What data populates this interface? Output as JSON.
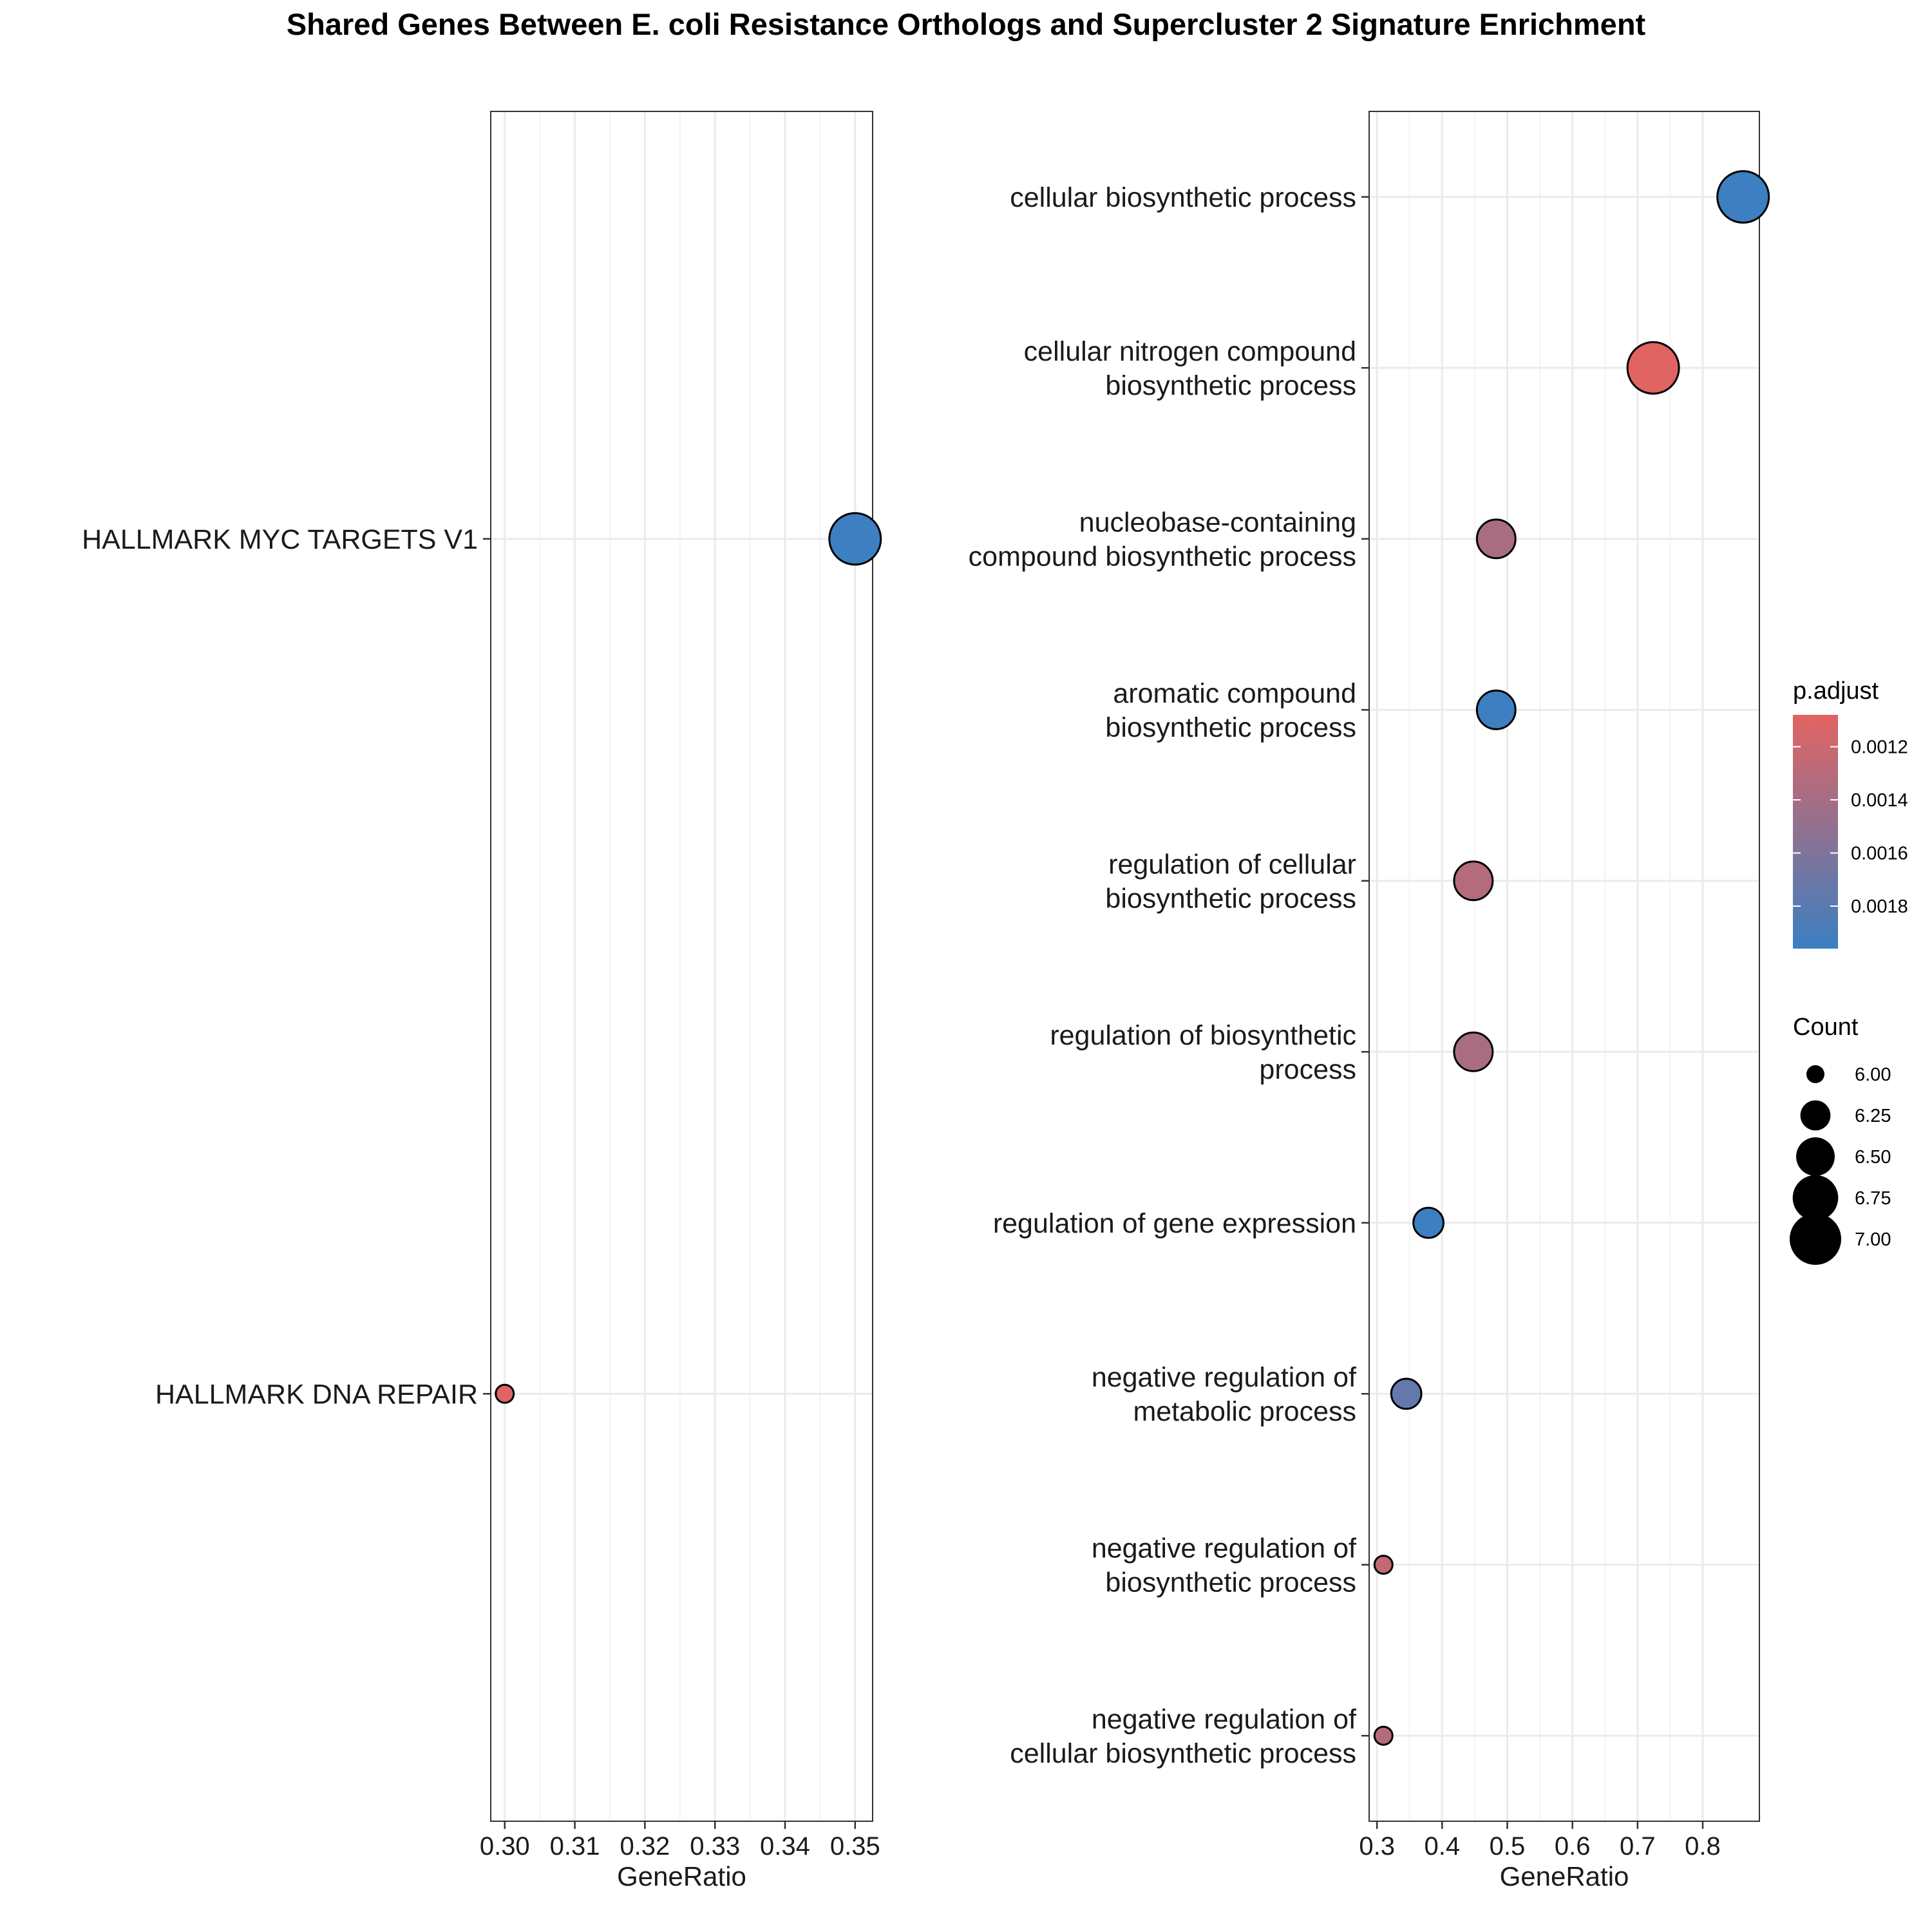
{
  "title": "Shared Genes Between E. coli Resistance Orthologs and Supercluster 2 Signature Enrichment",
  "colors": {
    "high_padj": "#3b7fc2",
    "low_padj": "#e26461",
    "grid_major": "#ebebeb",
    "grid_minor": "#f4f4f4",
    "point_outline": "#000000",
    "panel_border": "#333333"
  },
  "chart_data": [
    {
      "type": "scatter",
      "title": "",
      "xlabel": "GeneRatio",
      "ylabel": "",
      "xlim": [
        0.298,
        0.3525
      ],
      "xticks": [
        0.3,
        0.31,
        0.32,
        0.33,
        0.34,
        0.35
      ],
      "xtick_labels": [
        "0.30",
        "0.31",
        "0.32",
        "0.33",
        "0.34",
        "0.35"
      ],
      "categories": [
        "HALLMARK MYC TARGETS V1",
        "HALLMARK DNA REPAIR"
      ],
      "points": [
        {
          "label": "HALLMARK MYC TARGETS V1",
          "x": 0.35,
          "count": 7,
          "p_adjust": 0.00195
        },
        {
          "label": "HALLMARK DNA REPAIR",
          "x": 0.3,
          "count": 6,
          "p_adjust": 0.00109
        }
      ],
      "grid": true
    },
    {
      "type": "scatter",
      "title": "",
      "xlabel": "GeneRatio",
      "ylabel": "",
      "xlim": [
        0.288,
        0.887
      ],
      "xticks": [
        0.3,
        0.4,
        0.5,
        0.6,
        0.7,
        0.8
      ],
      "xtick_labels": [
        "0.3",
        "0.4",
        "0.5",
        "0.6",
        "0.7",
        "0.8"
      ],
      "categories": [
        "cellular biosynthetic process",
        "cellular nitrogen compound biosynthetic process",
        "nucleobase-containing compound biosynthetic process",
        "aromatic compound biosynthetic process",
        "regulation of cellular biosynthetic process",
        "regulation of biosynthetic process",
        "regulation of gene expression",
        "negative regulation of metabolic process",
        "negative regulation of biosynthetic process",
        "negative regulation of cellular biosynthetic process"
      ],
      "points": [
        {
          "label_lines": [
            "cellular biosynthetic process"
          ],
          "x": 0.862,
          "count": 7,
          "p_adjust": 0.00195
        },
        {
          "label_lines": [
            "cellular nitrogen compound",
            "biosynthetic process"
          ],
          "x": 0.724,
          "count": 7,
          "p_adjust": 0.00109
        },
        {
          "label_lines": [
            "nucleobase-containing",
            "compound biosynthetic process"
          ],
          "x": 0.483,
          "count": 6.5,
          "p_adjust": 0.00138
        },
        {
          "label_lines": [
            "aromatic compound",
            "biosynthetic process"
          ],
          "x": 0.483,
          "count": 6.5,
          "p_adjust": 0.00195
        },
        {
          "label_lines": [
            "regulation of cellular",
            "biosynthetic process"
          ],
          "x": 0.448,
          "count": 6.5,
          "p_adjust": 0.00132
        },
        {
          "label_lines": [
            "regulation of biosynthetic",
            "process"
          ],
          "x": 0.448,
          "count": 6.5,
          "p_adjust": 0.00138
        },
        {
          "label_lines": [
            "regulation of gene expression"
          ],
          "x": 0.379,
          "count": 6.25,
          "p_adjust": 0.00195
        },
        {
          "label_lines": [
            "negative regulation of",
            "metabolic process"
          ],
          "x": 0.345,
          "count": 6.25,
          "p_adjust": 0.00175
        },
        {
          "label_lines": [
            "negative regulation of",
            "biosynthetic process"
          ],
          "x": 0.31,
          "count": 6,
          "p_adjust": 0.00125
        },
        {
          "label_lines": [
            "negative regulation of",
            "cellular biosynthetic process"
          ],
          "x": 0.31,
          "count": 6,
          "p_adjust": 0.00132
        }
      ],
      "grid": true
    }
  ],
  "legend": {
    "color": {
      "title": "p.adjust",
      "range": [
        0.00108,
        0.00196
      ],
      "ticks": [
        0.0012,
        0.0014,
        0.0016,
        0.0018
      ],
      "tick_labels": [
        "0.0012",
        "0.0014",
        "0.0016",
        "0.0018"
      ]
    },
    "size": {
      "title": "Count",
      "values": [
        6.0,
        6.25,
        6.5,
        6.75,
        7.0
      ],
      "labels": [
        "6.00",
        "6.25",
        "6.50",
        "6.75",
        "7.00"
      ]
    },
    "placement": "right"
  }
}
